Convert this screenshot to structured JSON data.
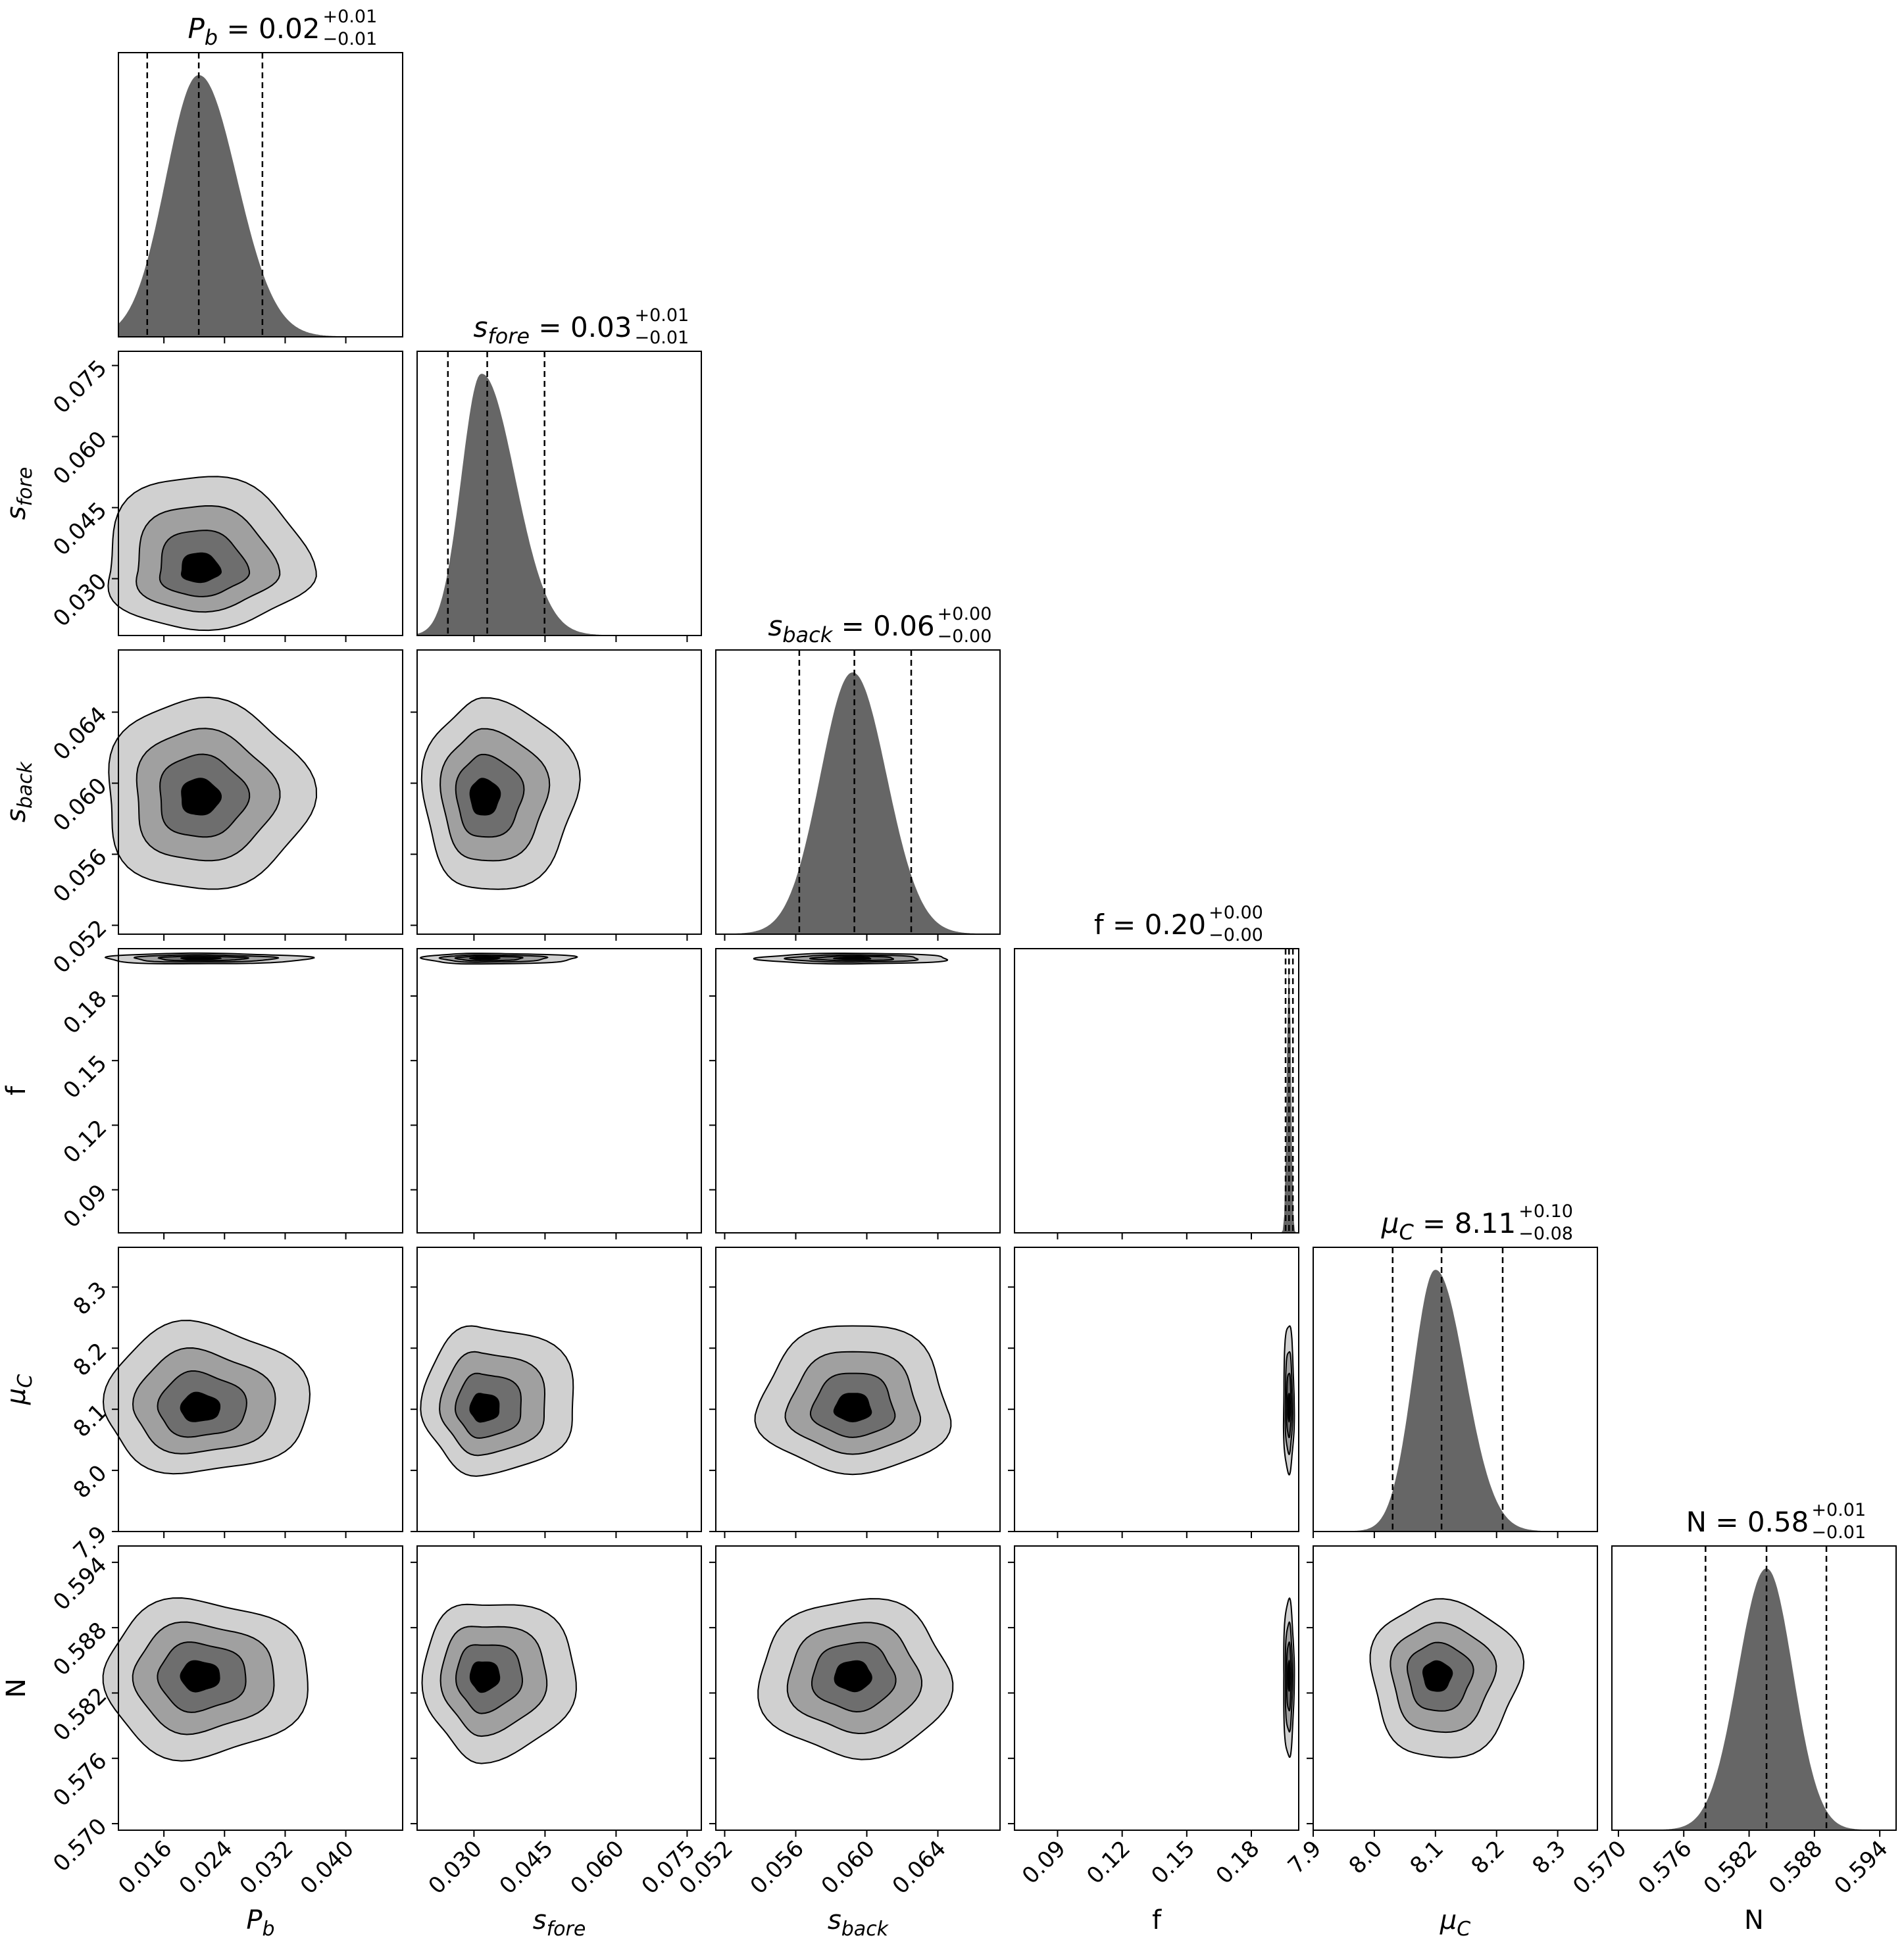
{
  "chart_data": {
    "type": "corner",
    "fill_color": "#666666",
    "contour_fills": [
      "#d0d0d0",
      "#a0a0a0",
      "#6e6e6e",
      "#000000"
    ],
    "grid": false,
    "params": [
      {
        "id": "Pb",
        "symbol": "P",
        "sub": "b",
        "italic": true,
        "title": {
          "value": "0.02",
          "plus": "+0.01",
          "minus": "−0.01"
        },
        "range": [
          0.01,
          0.0475
        ],
        "ticks": [
          0.016,
          0.024,
          0.032,
          0.04
        ],
        "tick_labels": [
          "0.016",
          "0.024",
          "0.032",
          "0.040"
        ],
        "quantiles": [
          0.0138,
          0.0206,
          0.029
        ],
        "mode": 0.0206,
        "sigma_left": 0.0043,
        "sigma_right": 0.005
      },
      {
        "id": "sfore",
        "symbol": "s",
        "sub": "fore",
        "italic": true,
        "title": {
          "value": "0.03",
          "plus": "+0.01",
          "minus": "−0.01"
        },
        "range": [
          0.018,
          0.078
        ],
        "ticks": [
          0.03,
          0.045,
          0.06,
          0.075
        ],
        "tick_labels": [
          "0.030",
          "0.045",
          "0.060",
          "0.075"
        ],
        "quantiles": [
          0.0245,
          0.0328,
          0.0449
        ],
        "mode": 0.0316,
        "sigma_left": 0.0042,
        "sigma_right": 0.007
      },
      {
        "id": "sback",
        "symbol": "s",
        "sub": "back",
        "italic": true,
        "title": {
          "value": "0.06",
          "plus": "+0.00",
          "minus": "−0.00"
        },
        "range": [
          0.0515,
          0.0675
        ],
        "ticks": [
          0.052,
          0.056,
          0.06,
          0.064
        ],
        "tick_labels": [
          "0.052",
          "0.056",
          "0.060",
          "0.064"
        ],
        "quantiles": [
          0.0562,
          0.0593,
          0.0625
        ],
        "mode": 0.0592,
        "sigma_left": 0.0018,
        "sigma_right": 0.0019
      },
      {
        "id": "f",
        "symbol": "f",
        "sub": "",
        "italic": false,
        "title": {
          "value": "0.20",
          "plus": "+0.00",
          "minus": "−0.00"
        },
        "range": [
          0.07,
          0.202
        ],
        "ticks": [
          0.09,
          0.12,
          0.15,
          0.18
        ],
        "tick_labels": [
          "0.09",
          "0.12",
          "0.15",
          "0.18"
        ],
        "quantiles": [
          0.1959,
          0.1975,
          0.1993
        ],
        "mode": 0.1975,
        "sigma_left": 0.0009,
        "sigma_right": 0.0008
      },
      {
        "id": "muC",
        "symbol": "μ",
        "sub": "C",
        "italic": true,
        "title": {
          "value": "8.11",
          "plus": "+0.10",
          "minus": "−0.08"
        },
        "range": [
          7.9,
          8.365
        ],
        "ticks": [
          7.9,
          8.0,
          8.1,
          8.2,
          8.3
        ],
        "tick_labels": [
          "7.9",
          "8.0",
          "8.1",
          "8.2",
          "8.3"
        ],
        "quantiles": [
          8.03,
          8.11,
          8.21
        ],
        "mode": 8.1,
        "sigma_left": 0.036,
        "sigma_right": 0.048
      },
      {
        "id": "N",
        "symbol": "N",
        "sub": "",
        "italic": false,
        "title": {
          "value": "0.58",
          "plus": "+0.01",
          "minus": "−0.01"
        },
        "range": [
          0.5694,
          0.5955
        ],
        "ticks": [
          0.57,
          0.576,
          0.582,
          0.588,
          0.594
        ],
        "tick_labels": [
          "0.570",
          "0.576",
          "0.582",
          "0.588",
          "0.594"
        ],
        "quantiles": [
          0.578,
          0.5836,
          0.5891
        ],
        "mode": 0.5836,
        "sigma_left": 0.0026,
        "sigma_right": 0.0024
      }
    ]
  }
}
